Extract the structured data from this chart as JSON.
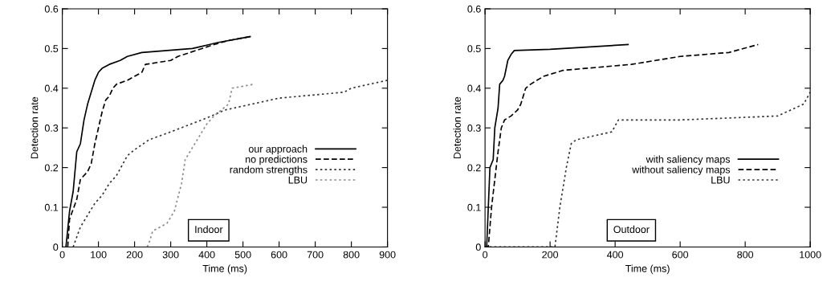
{
  "chart_data": [
    {
      "type": "line",
      "xlabel": "Time (ms)",
      "ylabel": "Detection rate",
      "xlim": [
        0,
        900
      ],
      "ylim": [
        0,
        0.6
      ],
      "xticks": [
        0,
        100,
        200,
        300,
        400,
        500,
        600,
        700,
        800,
        900
      ],
      "yticks": [
        0,
        0.1,
        0.2,
        0.3,
        0.4,
        0.5,
        0.6
      ],
      "grid": false,
      "legend": "bottom right",
      "annotations": [
        "Indoor"
      ],
      "series": [
        {
          "name": "our approach",
          "color": "#000000",
          "line_style": "solid",
          "x": [
            10,
            20,
            30,
            40,
            50,
            60,
            70,
            80,
            90,
            100,
            110,
            130,
            160,
            180,
            220,
            360,
            430,
            520
          ],
          "values": [
            0,
            0.09,
            0.14,
            0.24,
            0.26,
            0.32,
            0.36,
            0.39,
            0.42,
            0.44,
            0.45,
            0.46,
            0.47,
            0.48,
            0.49,
            0.5,
            0.515,
            0.53
          ]
        },
        {
          "name": "no predictions",
          "color": "#000000",
          "line_style": "dashed",
          "x": [
            15,
            20,
            40,
            50,
            70,
            80,
            90,
            100,
            110,
            120,
            130,
            140,
            150,
            180,
            200,
            220,
            230,
            300,
            320,
            370,
            420,
            460,
            520
          ],
          "values": [
            0,
            0.07,
            0.12,
            0.17,
            0.19,
            0.21,
            0.26,
            0.3,
            0.34,
            0.37,
            0.38,
            0.4,
            0.41,
            0.42,
            0.43,
            0.44,
            0.46,
            0.47,
            0.48,
            0.495,
            0.51,
            0.52,
            0.53
          ]
        },
        {
          "name": "random strengths",
          "color": "#333333",
          "line_style": "dotted",
          "x": [
            30,
            50,
            70,
            90,
            110,
            130,
            150,
            180,
            200,
            240,
            300,
            400,
            450,
            500,
            600,
            780,
            800,
            900
          ],
          "values": [
            0,
            0.05,
            0.08,
            0.11,
            0.13,
            0.16,
            0.18,
            0.23,
            0.245,
            0.27,
            0.29,
            0.325,
            0.345,
            0.355,
            0.375,
            0.39,
            0.4,
            0.42
          ]
        },
        {
          "name": "LBU",
          "color": "#888888",
          "line_style": "dotted",
          "x": [
            235,
            240,
            250,
            270,
            290,
            310,
            330,
            340,
            360,
            380,
            400,
            420,
            440,
            460,
            470,
            500,
            530
          ],
          "values": [
            0,
            0.01,
            0.04,
            0.05,
            0.06,
            0.09,
            0.16,
            0.22,
            0.25,
            0.28,
            0.31,
            0.33,
            0.345,
            0.36,
            0.4,
            0.405,
            0.41
          ]
        }
      ]
    },
    {
      "type": "line",
      "xlabel": "Time (ms)",
      "ylabel": "Detection rate",
      "xlim": [
        0,
        1000
      ],
      "ylim": [
        0,
        0.6
      ],
      "xticks": [
        0,
        200,
        400,
        600,
        800,
        1000
      ],
      "yticks": [
        0,
        0.1,
        0.2,
        0.3,
        0.4,
        0.5,
        0.6
      ],
      "grid": false,
      "legend": "bottom right",
      "annotations": [
        "Outdoor"
      ],
      "series": [
        {
          "name": "with saliency maps",
          "color": "#000000",
          "line_style": "solid",
          "x": [
            0,
            5,
            10,
            15,
            25,
            30,
            40,
            45,
            55,
            60,
            70,
            80,
            90,
            200,
            440
          ],
          "values": [
            0,
            0,
            0.1,
            0.2,
            0.22,
            0.3,
            0.35,
            0.41,
            0.42,
            0.43,
            0.47,
            0.485,
            0.495,
            0.498,
            0.51
          ]
        },
        {
          "name": "without saliency maps",
          "color": "#000000",
          "line_style": "dashed",
          "x": [
            0,
            10,
            20,
            30,
            40,
            50,
            60,
            80,
            100,
            110,
            125,
            140,
            180,
            240,
            450,
            600,
            750,
            840
          ],
          "values": [
            0,
            0,
            0.1,
            0.17,
            0.24,
            0.3,
            0.32,
            0.33,
            0.345,
            0.36,
            0.4,
            0.41,
            0.43,
            0.445,
            0.46,
            0.48,
            0.49,
            0.51
          ]
        },
        {
          "name": "LBU",
          "color": "#333333",
          "line_style": "dotted",
          "x": [
            0,
            215,
            230,
            250,
            265,
            280,
            390,
            410,
            600,
            900,
            980,
            1000
          ],
          "values": [
            0,
            0,
            0.1,
            0.2,
            0.26,
            0.27,
            0.29,
            0.32,
            0.32,
            0.33,
            0.36,
            0.39
          ]
        }
      ]
    }
  ]
}
